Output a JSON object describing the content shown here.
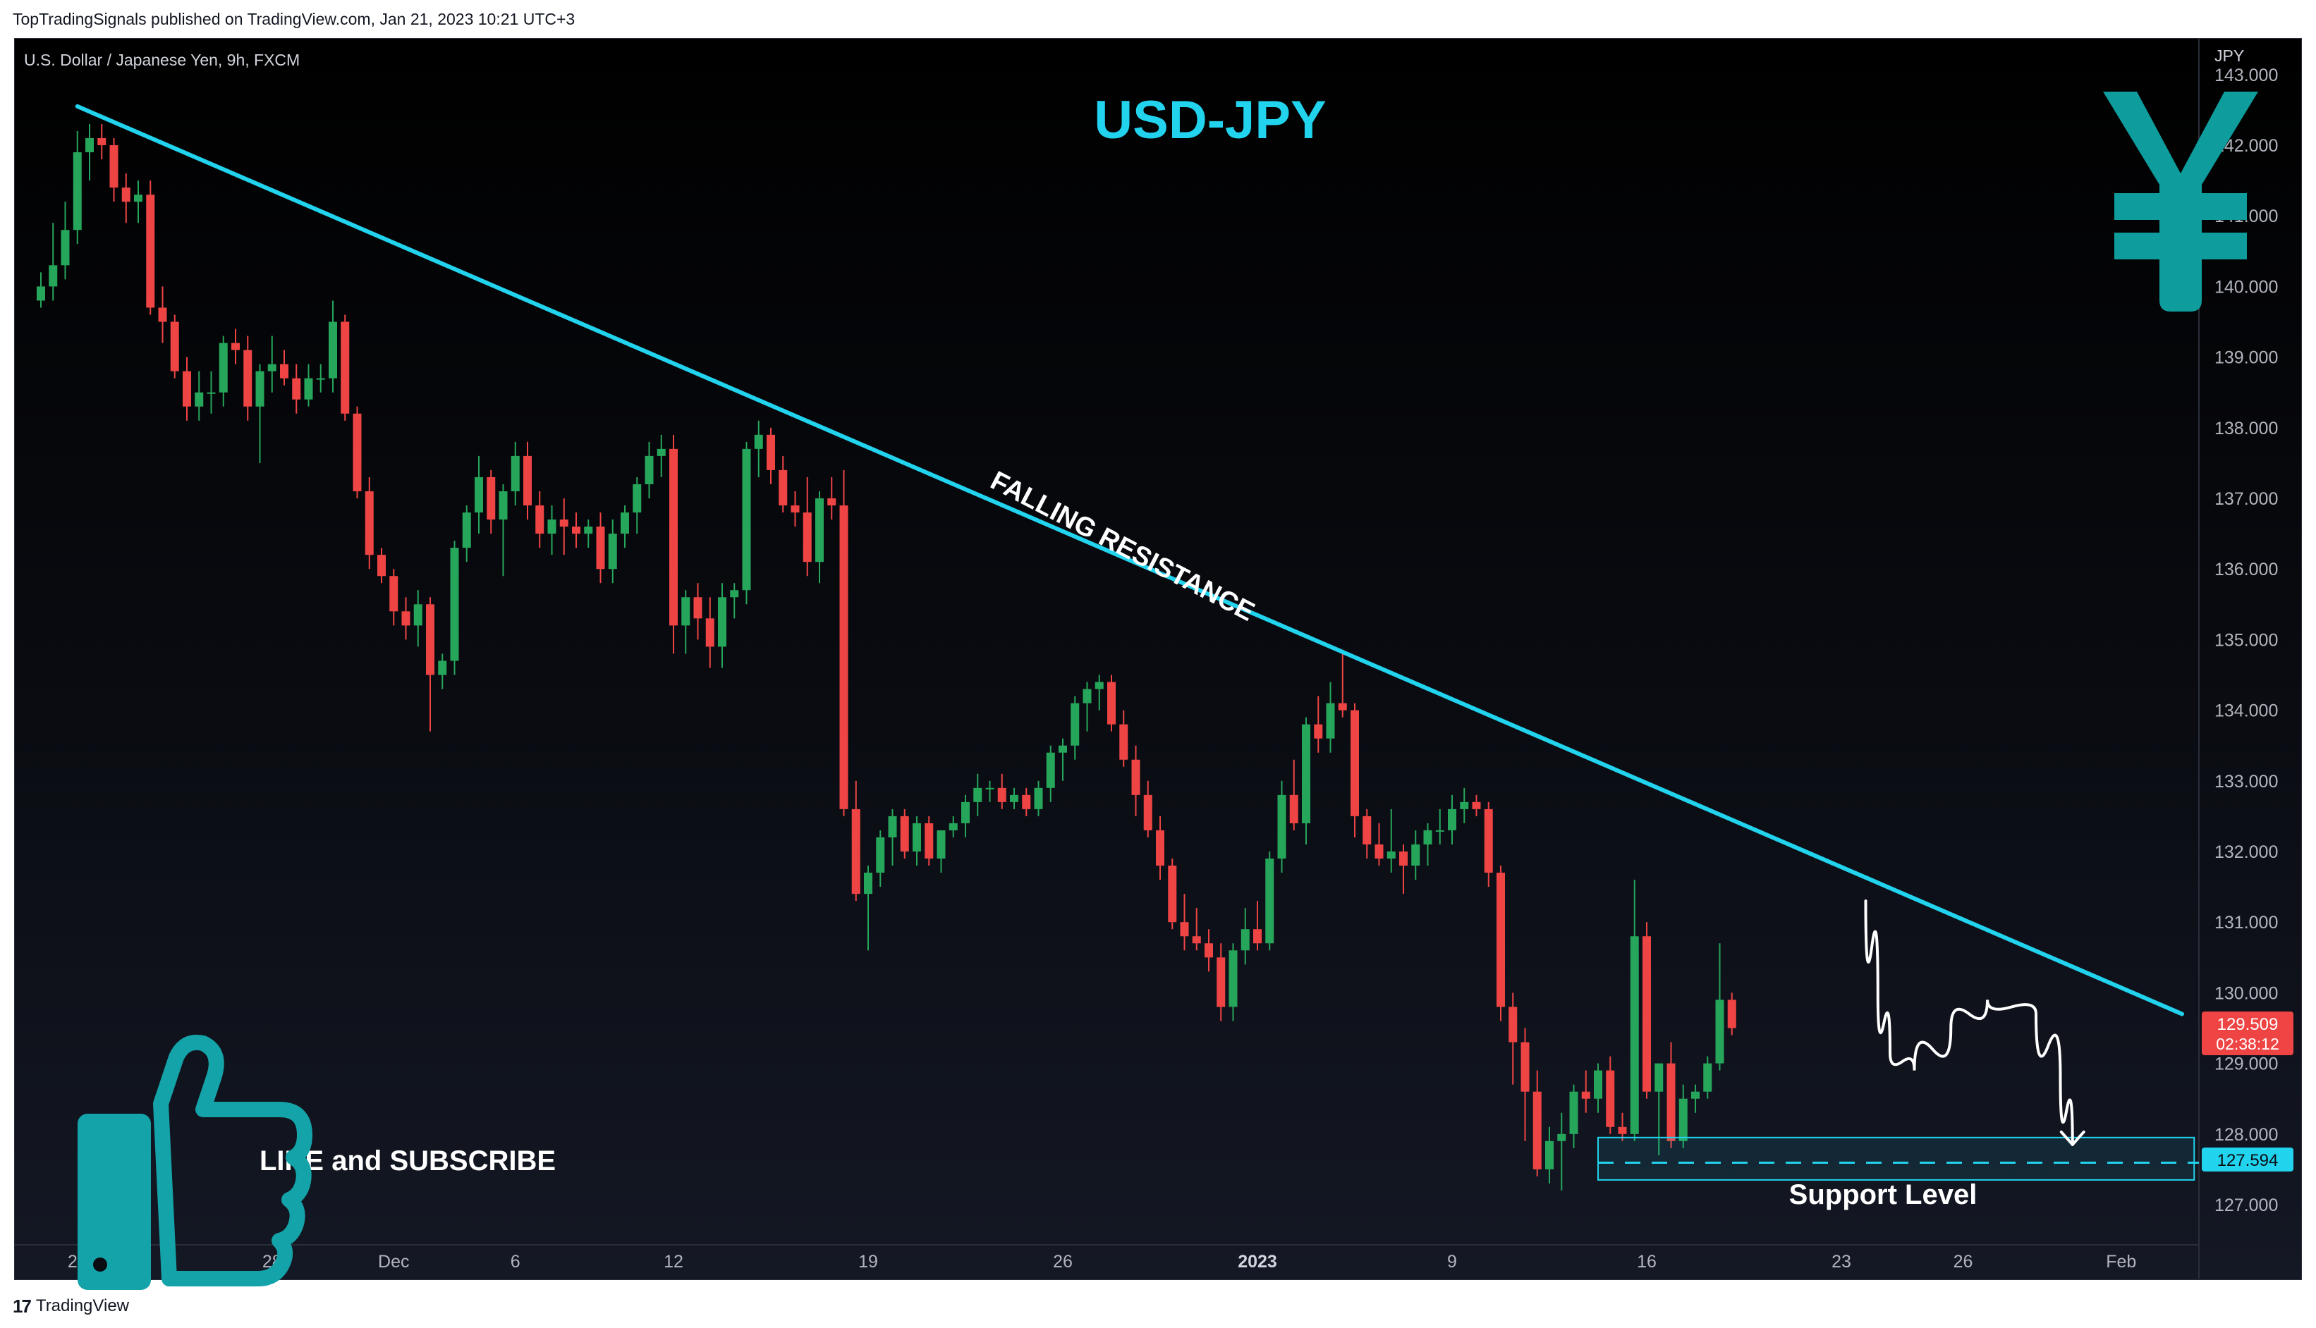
{
  "header": {
    "publisher_line": "TopTradingSignals published on TradingView.com, Jan 21, 2023 10:21 UTC+3"
  },
  "symbol": {
    "description": "U.S. Dollar / Japanese Yen, 9h, FXCM"
  },
  "footer": {
    "brand": "TradingView",
    "logo": "17"
  },
  "icons": {
    "currency": "yen-icon",
    "thumbs": "thumbs-up-icon",
    "brand_logo": "tradingview-logo-icon"
  },
  "colors": {
    "up": "#26a65b",
    "down": "#ef4444",
    "trendline": "#22d3ee",
    "title": "#22d3ee",
    "yen": "#0e9c9c",
    "thumb": "#14a3a8",
    "support_box": "#22d3ee",
    "price_tag": "#ef4444"
  },
  "chart_data": {
    "type": "candlestick",
    "title": "USD-JPY",
    "symbol": "U.S. Dollar / Japanese Yen, 9h, FXCM",
    "yaxis": {
      "unit": "JPY",
      "range": [
        126.9,
        143.6
      ],
      "ticks": [
        "143.000",
        "142.000",
        "141.000",
        "140.000",
        "139.000",
        "138.000",
        "137.000",
        "136.000",
        "135.000",
        "134.000",
        "133.000",
        "132.000",
        "131.000",
        "130.000",
        "129.000",
        "128.000",
        "127.000"
      ]
    },
    "xaxis": {
      "ticks": [
        {
          "label": "21",
          "bar": 3
        },
        {
          "label": "28",
          "bar": 19
        },
        {
          "label": "Dec",
          "bar": 29
        },
        {
          "label": "6",
          "bar": 39
        },
        {
          "label": "12",
          "bar": 52
        },
        {
          "label": "19",
          "bar": 68
        },
        {
          "label": "26",
          "bar": 84
        },
        {
          "label": "2023",
          "bar": 100,
          "bold": true
        },
        {
          "label": "9",
          "bar": 116
        },
        {
          "label": "16",
          "bar": 132
        },
        {
          "label": "23",
          "bar": 148
        },
        {
          "label": "26",
          "bar": 158
        },
        {
          "label": "Feb",
          "bar": 171
        }
      ]
    },
    "ohlc": [
      [
        139.8,
        140.2,
        139.7,
        140.0
      ],
      [
        140.0,
        140.9,
        139.8,
        140.3
      ],
      [
        140.3,
        141.2,
        140.1,
        140.8
      ],
      [
        140.8,
        142.2,
        140.6,
        141.9
      ],
      [
        141.9,
        142.3,
        141.5,
        142.1
      ],
      [
        142.1,
        142.3,
        141.8,
        142.0
      ],
      [
        142.0,
        142.1,
        141.2,
        141.4
      ],
      [
        141.4,
        141.6,
        140.9,
        141.2
      ],
      [
        141.2,
        141.5,
        140.9,
        141.3
      ],
      [
        141.3,
        141.5,
        139.6,
        139.7
      ],
      [
        139.7,
        140.0,
        139.2,
        139.5
      ],
      [
        139.5,
        139.6,
        138.7,
        138.8
      ],
      [
        138.8,
        139.0,
        138.1,
        138.3
      ],
      [
        138.3,
        138.8,
        138.1,
        138.5
      ],
      [
        138.5,
        138.8,
        138.2,
        138.5
      ],
      [
        138.5,
        139.3,
        138.3,
        139.2
      ],
      [
        139.2,
        139.4,
        138.9,
        139.1
      ],
      [
        139.1,
        139.3,
        138.1,
        138.3
      ],
      [
        138.3,
        138.9,
        137.5,
        138.8
      ],
      [
        138.8,
        139.3,
        138.5,
        138.9
      ],
      [
        138.9,
        139.1,
        138.6,
        138.7
      ],
      [
        138.7,
        138.9,
        138.2,
        138.4
      ],
      [
        138.4,
        138.9,
        138.3,
        138.7
      ],
      [
        138.7,
        138.9,
        138.5,
        138.7
      ],
      [
        138.7,
        139.8,
        138.5,
        139.5
      ],
      [
        139.5,
        139.6,
        138.1,
        138.2
      ],
      [
        138.2,
        138.3,
        137.0,
        137.1
      ],
      [
        137.1,
        137.3,
        136.0,
        136.2
      ],
      [
        136.2,
        136.3,
        135.8,
        135.9
      ],
      [
        135.9,
        136.0,
        135.2,
        135.4
      ],
      [
        135.4,
        135.6,
        135.0,
        135.2
      ],
      [
        135.2,
        135.7,
        134.9,
        135.5
      ],
      [
        135.5,
        135.6,
        133.7,
        134.5
      ],
      [
        134.5,
        134.8,
        134.3,
        134.7
      ],
      [
        134.7,
        136.4,
        134.5,
        136.3
      ],
      [
        136.3,
        136.9,
        136.1,
        136.8
      ],
      [
        136.8,
        137.6,
        136.5,
        137.3
      ],
      [
        137.3,
        137.4,
        136.5,
        136.7
      ],
      [
        136.7,
        137.2,
        135.9,
        137.1
      ],
      [
        137.1,
        137.8,
        136.9,
        137.6
      ],
      [
        137.6,
        137.8,
        136.7,
        136.9
      ],
      [
        136.9,
        137.1,
        136.3,
        136.5
      ],
      [
        136.5,
        136.9,
        136.2,
        136.7
      ],
      [
        136.7,
        137.0,
        136.2,
        136.6
      ],
      [
        136.6,
        136.8,
        136.3,
        136.5
      ],
      [
        136.5,
        136.7,
        136.3,
        136.6
      ],
      [
        136.6,
        136.8,
        135.8,
        136.0
      ],
      [
        136.0,
        136.7,
        135.8,
        136.5
      ],
      [
        136.5,
        136.9,
        136.3,
        136.8
      ],
      [
        136.8,
        137.3,
        136.5,
        137.2
      ],
      [
        137.2,
        137.8,
        137.0,
        137.6
      ],
      [
        137.6,
        137.9,
        137.3,
        137.7
      ],
      [
        137.7,
        137.9,
        134.8,
        135.2
      ],
      [
        135.2,
        135.7,
        134.8,
        135.6
      ],
      [
        135.6,
        135.8,
        135.0,
        135.3
      ],
      [
        135.3,
        135.6,
        134.6,
        134.9
      ],
      [
        134.9,
        135.8,
        134.6,
        135.6
      ],
      [
        135.6,
        135.8,
        135.3,
        135.7
      ],
      [
        135.7,
        137.8,
        135.5,
        137.7
      ],
      [
        137.7,
        138.1,
        137.3,
        137.9
      ],
      [
        137.9,
        138.0,
        137.2,
        137.4
      ],
      [
        137.4,
        137.6,
        136.8,
        136.9
      ],
      [
        136.9,
        137.1,
        136.6,
        136.8
      ],
      [
        136.8,
        137.3,
        135.9,
        136.1
      ],
      [
        136.1,
        137.1,
        135.8,
        137.0
      ],
      [
        137.0,
        137.3,
        136.7,
        136.9
      ],
      [
        136.9,
        137.4,
        132.5,
        132.6
      ],
      [
        132.6,
        133.0,
        131.3,
        131.4
      ],
      [
        131.4,
        131.8,
        130.6,
        131.7
      ],
      [
        131.7,
        132.3,
        131.5,
        132.2
      ],
      [
        132.2,
        132.6,
        131.8,
        132.5
      ],
      [
        132.5,
        132.6,
        131.9,
        132.0
      ],
      [
        132.0,
        132.5,
        131.8,
        132.4
      ],
      [
        132.4,
        132.5,
        131.8,
        131.9
      ],
      [
        131.9,
        132.3,
        131.7,
        132.3
      ],
      [
        132.3,
        132.5,
        132.2,
        132.4
      ],
      [
        132.4,
        132.8,
        132.2,
        132.7
      ],
      [
        132.7,
        133.1,
        132.5,
        132.9
      ],
      [
        132.9,
        133.0,
        132.7,
        132.9
      ],
      [
        132.9,
        133.1,
        132.6,
        132.7
      ],
      [
        132.7,
        132.9,
        132.6,
        132.8
      ],
      [
        132.8,
        132.9,
        132.5,
        132.6
      ],
      [
        132.6,
        133.0,
        132.5,
        132.9
      ],
      [
        132.9,
        133.5,
        132.7,
        133.4
      ],
      [
        133.4,
        133.6,
        133.0,
        133.5
      ],
      [
        133.5,
        134.2,
        133.3,
        134.1
      ],
      [
        134.1,
        134.4,
        133.7,
        134.3
      ],
      [
        134.3,
        134.5,
        134.0,
        134.4
      ],
      [
        134.4,
        134.5,
        133.7,
        133.8
      ],
      [
        133.8,
        134.0,
        133.2,
        133.3
      ],
      [
        133.3,
        133.5,
        132.5,
        132.8
      ],
      [
        132.8,
        133.0,
        132.2,
        132.3
      ],
      [
        132.3,
        132.5,
        131.6,
        131.8
      ],
      [
        131.8,
        131.9,
        130.9,
        131.0
      ],
      [
        131.0,
        131.4,
        130.6,
        130.8
      ],
      [
        130.8,
        131.2,
        130.6,
        130.7
      ],
      [
        130.7,
        130.9,
        130.3,
        130.5
      ],
      [
        130.5,
        130.7,
        129.6,
        129.8
      ],
      [
        129.8,
        130.7,
        129.6,
        130.6
      ],
      [
        130.6,
        131.2,
        130.4,
        130.9
      ],
      [
        130.9,
        131.3,
        130.6,
        130.7
      ],
      [
        130.7,
        132.0,
        130.6,
        131.9
      ],
      [
        131.9,
        133.0,
        131.7,
        132.8
      ],
      [
        132.8,
        133.3,
        132.3,
        132.4
      ],
      [
        132.4,
        133.9,
        132.1,
        133.8
      ],
      [
        133.8,
        134.2,
        133.4,
        133.6
      ],
      [
        133.6,
        134.4,
        133.4,
        134.1
      ],
      [
        134.1,
        134.8,
        133.9,
        134.0
      ],
      [
        134.0,
        134.1,
        132.2,
        132.5
      ],
      [
        132.5,
        132.6,
        131.9,
        132.1
      ],
      [
        132.1,
        132.4,
        131.8,
        131.9
      ],
      [
        131.9,
        132.6,
        131.7,
        132.0
      ],
      [
        132.0,
        132.1,
        131.4,
        131.8
      ],
      [
        131.8,
        132.3,
        131.6,
        132.1
      ],
      [
        132.1,
        132.4,
        131.8,
        132.3
      ],
      [
        132.3,
        132.6,
        132.1,
        132.3
      ],
      [
        132.3,
        132.8,
        132.1,
        132.6
      ],
      [
        132.6,
        132.9,
        132.4,
        132.7
      ],
      [
        132.7,
        132.8,
        132.5,
        132.6
      ],
      [
        132.6,
        132.7,
        131.5,
        131.7
      ],
      [
        131.7,
        131.8,
        129.6,
        129.8
      ],
      [
        129.8,
        130.0,
        128.7,
        129.3
      ],
      [
        129.3,
        129.5,
        127.9,
        128.6
      ],
      [
        128.6,
        128.9,
        127.4,
        127.5
      ],
      [
        127.5,
        128.1,
        127.3,
        127.9
      ],
      [
        127.9,
        128.3,
        127.2,
        128.0
      ],
      [
        128.0,
        128.7,
        127.8,
        128.6
      ],
      [
        128.6,
        128.9,
        128.3,
        128.5
      ],
      [
        128.5,
        129.0,
        128.3,
        128.9
      ],
      [
        128.9,
        129.1,
        128.0,
        128.1
      ],
      [
        128.1,
        128.3,
        127.9,
        128.0
      ],
      [
        128.0,
        131.6,
        127.9,
        130.8
      ],
      [
        130.8,
        131.0,
        128.5,
        128.6
      ],
      [
        128.6,
        129.0,
        127.7,
        129.0
      ],
      [
        129.0,
        129.3,
        127.8,
        127.9
      ],
      [
        127.9,
        128.7,
        127.8,
        128.5
      ],
      [
        128.5,
        128.7,
        128.3,
        128.6
      ],
      [
        128.6,
        129.1,
        128.5,
        129.0
      ],
      [
        129.0,
        130.7,
        128.9,
        129.9
      ],
      [
        129.9,
        130.0,
        129.4,
        129.5
      ]
    ],
    "trendline": {
      "start": {
        "bar": 3,
        "price": 142.55
      },
      "end": {
        "bar": 176,
        "price": 129.7
      }
    },
    "current_price": "129.509",
    "countdown": "02:38:12",
    "support_price": "127.594",
    "support_zone": [
      127.35,
      127.95
    ],
    "projection_path": [
      {
        "bar": 150,
        "price": 131.3
      },
      {
        "bar": 151,
        "price": 130.0
      },
      {
        "bar": 152,
        "price": 129.15
      },
      {
        "bar": 154,
        "price": 128.9
      },
      {
        "bar": 157,
        "price": 129.5
      },
      {
        "bar": 160,
        "price": 129.9
      },
      {
        "bar": 164,
        "price": 129.7
      },
      {
        "bar": 166,
        "price": 128.8
      },
      {
        "bar": 167,
        "price": 127.85
      }
    ],
    "annotations": {
      "trendline_label": "FALLING RESISTANCE",
      "support_label": "Support Level",
      "cta": "LIKE and SUBSCRIBE"
    }
  }
}
